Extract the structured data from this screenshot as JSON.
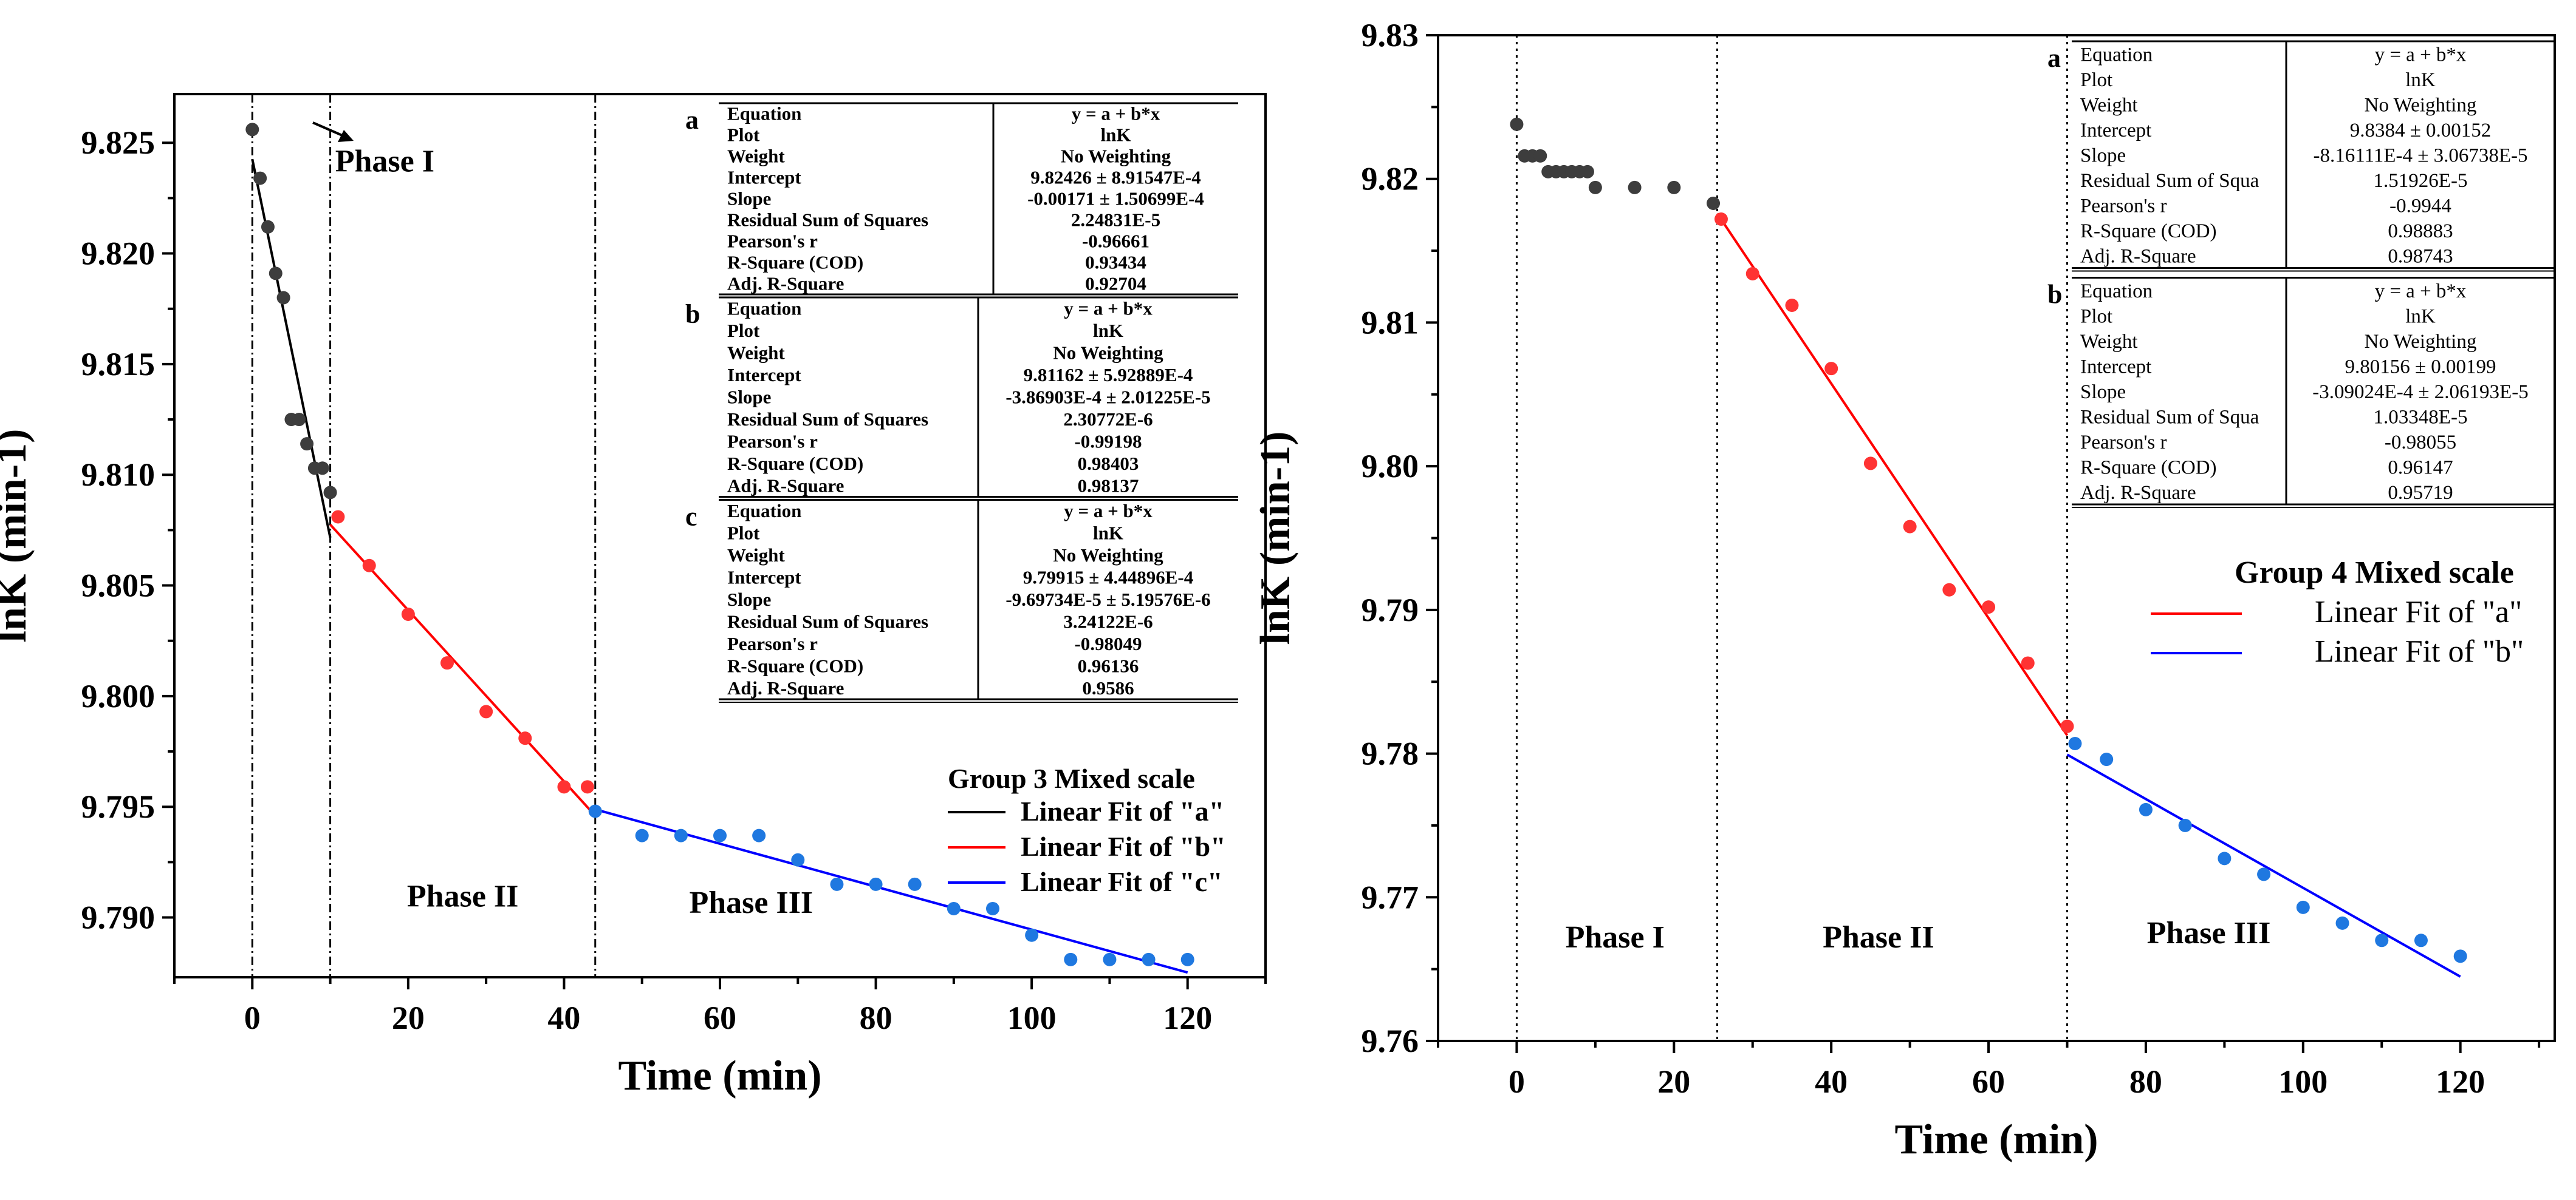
{
  "chart_data": [
    {
      "type": "scatter",
      "title": "",
      "xlabel": "Time (min)",
      "ylabel": "lnK (min-1)",
      "xlim": [
        -10,
        130
      ],
      "ylim": [
        9.7873,
        9.8272
      ],
      "x_ticks": [
        0,
        20,
        40,
        60,
        80,
        100,
        120
      ],
      "y_ticks": [
        9.79,
        9.795,
        9.8,
        9.805,
        9.81,
        9.815,
        9.82,
        9.825
      ],
      "y_tick_labels": [
        "9.790",
        "9.795",
        "9.800",
        "9.805",
        "9.810",
        "9.815",
        "9.820",
        "9.825"
      ],
      "x_tick_labels": [
        "0",
        "20",
        "40",
        "60",
        "80",
        "100",
        "120"
      ],
      "phase_lines": [
        0,
        10,
        44
      ],
      "phase_labels": [
        {
          "text": "Phase I",
          "x": 17,
          "y": 9.8237
        },
        {
          "text": "Phase II",
          "x": 27,
          "y": 9.7905
        },
        {
          "text": "Phase III",
          "x": 64,
          "y": 9.7902
        }
      ],
      "series": [
        {
          "name": "",
          "color": "#3d3d3d",
          "x": [
            0,
            1,
            2,
            3,
            4,
            5,
            6,
            7,
            8,
            9,
            10
          ],
          "y": [
            9.8256,
            9.8234,
            9.8212,
            9.8191,
            9.818,
            9.8125,
            9.8125,
            9.8114,
            9.8103,
            9.8103,
            9.8092
          ]
        },
        {
          "name": "",
          "color": "#ff3333",
          "x": [
            11,
            15,
            20,
            25,
            30,
            35,
            40,
            43
          ],
          "y": [
            9.8081,
            9.8059,
            9.8037,
            9.8015,
            9.7993,
            9.7981,
            9.7959,
            9.7959
          ]
        },
        {
          "name": "",
          "color": "#1f78e0",
          "x": [
            44,
            50,
            55,
            60,
            65,
            70,
            75,
            80,
            85,
            90,
            95,
            100,
            105,
            110,
            115,
            120
          ],
          "y": [
            9.7948,
            9.7937,
            9.7937,
            9.7937,
            9.7937,
            9.7926,
            9.7915,
            9.7915,
            9.7915,
            9.7904,
            9.7904,
            9.7892,
            9.7881,
            9.7881,
            9.7881,
            9.7881
          ]
        }
      ],
      "fits": [
        {
          "name": "Linear  Fit of  \"a\"",
          "color": "#000000",
          "intercept": 9.82426,
          "slope": -0.00171,
          "x_range": [
            0,
            10
          ]
        },
        {
          "name": "Linear  Fit of  \"b\"",
          "color": "#ff0000",
          "intercept": 9.81162,
          "slope": -0.000386903,
          "x_range": [
            10,
            44
          ]
        },
        {
          "name": "Linear  Fit of  \"c\"",
          "color": "#0000ff",
          "intercept": 9.79915,
          "slope": -9.69734e-05,
          "x_range": [
            44,
            120
          ]
        }
      ],
      "legend": {
        "title": "Group 3 Mixed scale",
        "position": "right"
      },
      "tables": [
        {
          "letter": "a",
          "rows": [
            [
              "Equation",
              "y = a + b*x"
            ],
            [
              "Plot",
              "lnK"
            ],
            [
              "Weight",
              "No Weighting"
            ],
            [
              "Intercept",
              "9.82426 ± 8.91547E-4"
            ],
            [
              "Slope",
              "-0.00171 ± 1.50699E-4"
            ],
            [
              "Residual Sum of Squares",
              "2.24831E-5"
            ],
            [
              "Pearson's r",
              "-0.96661"
            ],
            [
              "R-Square (COD)",
              "0.93434"
            ],
            [
              "Adj. R-Square",
              "0.92704"
            ]
          ]
        },
        {
          "letter": "b",
          "rows": [
            [
              "Equation",
              "y = a + b*x"
            ],
            [
              "Plot",
              "lnK"
            ],
            [
              "Weight",
              "No Weighting"
            ],
            [
              "Intercept",
              "9.81162 ± 5.92889E-4"
            ],
            [
              "Slope",
              "-3.86903E-4 ± 2.01225E-5"
            ],
            [
              "Residual Sum of Squares",
              "2.30772E-6"
            ],
            [
              "Pearson's r",
              "-0.99198"
            ],
            [
              "R-Square (COD)",
              "0.98403"
            ],
            [
              "Adj. R-Square",
              "0.98137"
            ]
          ]
        },
        {
          "letter": "c",
          "rows": [
            [
              "Equation",
              "y = a + b*x"
            ],
            [
              "Plot",
              "lnK"
            ],
            [
              "Weight",
              "No Weighting"
            ],
            [
              "Intercept",
              "9.79915 ± 4.44896E-4"
            ],
            [
              "Slope",
              "-9.69734E-5 ± 5.19576E-6"
            ],
            [
              "Residual Sum of Squares",
              "3.24122E-6"
            ],
            [
              "Pearson's r",
              "-0.98049"
            ],
            [
              "R-Square (COD)",
              "0.96136"
            ],
            [
              "Adj. R-Square",
              "0.9586"
            ]
          ]
        }
      ]
    },
    {
      "type": "scatter",
      "title": "",
      "xlabel": "Time (min)",
      "ylabel": "lnK (min-1)",
      "xlim": [
        -10,
        132
      ],
      "ylim": [
        9.76,
        9.83
      ],
      "x_ticks": [
        0,
        20,
        40,
        60,
        80,
        100,
        120
      ],
      "y_ticks": [
        9.76,
        9.77,
        9.78,
        9.79,
        9.8,
        9.81,
        9.82,
        9.83
      ],
      "y_tick_labels": [
        "9.76",
        "9.77",
        "9.78",
        "9.79",
        "9.80",
        "9.81",
        "9.82",
        "9.83"
      ],
      "x_tick_labels": [
        "0",
        "20",
        "40",
        "60",
        "80",
        "100",
        "120"
      ],
      "phase_lines": [
        0,
        25.5,
        70
      ],
      "phase_labels": [
        {
          "text": "Phase I",
          "x": 12.5,
          "y": 9.7665
        },
        {
          "text": "Phase II",
          "x": 46,
          "y": 9.7665
        },
        {
          "text": "Phase III",
          "x": 88,
          "y": 9.7668
        }
      ],
      "series": [
        {
          "name": "",
          "color": "#3d3d3d",
          "x": [
            0,
            1,
            2,
            3,
            4,
            5,
            6,
            7,
            8,
            9,
            10,
            15,
            20,
            25
          ],
          "y": [
            9.8238,
            9.8216,
            9.8216,
            9.8216,
            9.8205,
            9.8205,
            9.8205,
            9.8205,
            9.8205,
            9.8205,
            9.8194,
            9.8194,
            9.8194,
            9.8183
          ]
        },
        {
          "name": "",
          "color": "#ff3333",
          "x": [
            26,
            30,
            35,
            40,
            45,
            50,
            55,
            60,
            65,
            70
          ],
          "y": [
            9.8172,
            9.8134,
            9.8112,
            9.8068,
            9.8002,
            9.7958,
            9.7914,
            9.7902,
            9.7863,
            9.7819
          ]
        },
        {
          "name": "",
          "color": "#1f78e0",
          "x": [
            71,
            75,
            80,
            85,
            90,
            95,
            100,
            105,
            110,
            115,
            120
          ],
          "y": [
            9.7807,
            9.7796,
            9.7761,
            9.775,
            9.7727,
            9.7716,
            9.7693,
            9.7682,
            9.767,
            9.767,
            9.7659
          ]
        }
      ],
      "fits": [
        {
          "name": "Linear Fit of \"a\"",
          "color": "#ff0000",
          "intercept": 9.8384,
          "slope": -0.000816111,
          "x_range": [
            25.5,
            70
          ]
        },
        {
          "name": "Linear Fit of \"b\"",
          "color": "#0000ff",
          "intercept": 9.80156,
          "slope": -0.000309024,
          "x_range": [
            70,
            120
          ]
        }
      ],
      "legend": {
        "title": "Group 4 Mixed scale",
        "position": "right"
      },
      "tables": [
        {
          "letter": "a",
          "rows": [
            [
              "Equation",
              "y = a + b*x"
            ],
            [
              "Plot",
              "lnK"
            ],
            [
              "Weight",
              "No Weighting"
            ],
            [
              "Intercept",
              "9.8384 ± 0.00152"
            ],
            [
              "Slope",
              "-8.16111E-4 ± 3.06738E-5"
            ],
            [
              "Residual Sum of Squa",
              "1.51926E-5"
            ],
            [
              "Pearson's r",
              "-0.9944"
            ],
            [
              "R-Square (COD)",
              "0.98883"
            ],
            [
              "Adj. R-Square",
              "0.98743"
            ]
          ]
        },
        {
          "letter": "b",
          "rows": [
            [
              "Equation",
              "y = a + b*x"
            ],
            [
              "Plot",
              "lnK"
            ],
            [
              "Weight",
              "No Weighting"
            ],
            [
              "Intercept",
              "9.80156 ± 0.00199"
            ],
            [
              "Slope",
              "-3.09024E-4 ± 2.06193E-5"
            ],
            [
              "Residual Sum of Squa",
              "1.03348E-5"
            ],
            [
              "Pearson's r",
              "-0.98055"
            ],
            [
              "R-Square (COD)",
              "0.96147"
            ],
            [
              "Adj. R-Square",
              "0.95719"
            ]
          ]
        }
      ]
    }
  ]
}
